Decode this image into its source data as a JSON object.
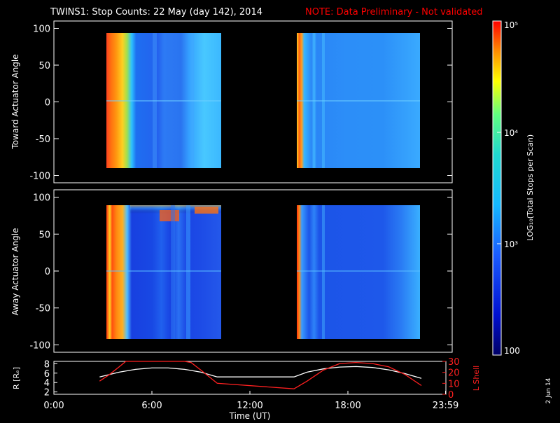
{
  "header": {
    "title": "TWINS1: Stop Counts: 22 May (day 142), 2014",
    "note": "NOTE: Data Preliminary - Not validated"
  },
  "footer_date": "2 Jun 14",
  "colors": {
    "background": "#000000",
    "note": "#ff0000",
    "foreground": "#ffffff",
    "l_shell": "#ff2020",
    "r_line": "#ffffff"
  },
  "chart_data": [
    {
      "type": "heatmap",
      "name": "toward-panel",
      "ylabel": "Toward Actuator Angle",
      "ylim": [
        -110,
        110
      ],
      "yticks": [
        100,
        50,
        0,
        -50,
        -100
      ],
      "xlim_hours": [
        0,
        24
      ],
      "intervals": [
        {
          "start_hours": 2.8,
          "end_hours": 10.0,
          "angle_range": [
            -88,
            90
          ]
        },
        {
          "start_hours": 14.7,
          "end_hours": 22.5,
          "angle_range": [
            -88,
            90
          ]
        }
      ]
    },
    {
      "type": "heatmap",
      "name": "away-panel",
      "ylabel": "Away Actuator Angle",
      "ylim": [
        -110,
        110
      ],
      "yticks": [
        100,
        50,
        0,
        -50,
        -100
      ],
      "xlim_hours": [
        0,
        24
      ],
      "intervals": [
        {
          "start_hours": 2.8,
          "end_hours": 10.0,
          "angle_range": [
            -88,
            90
          ]
        },
        {
          "start_hours": 14.7,
          "end_hours": 22.5,
          "angle_range": [
            -88,
            90
          ]
        }
      ]
    },
    {
      "type": "line",
      "name": "ephemeris-panel",
      "ylabel_left": "R [Rₑ]",
      "ylabel_right": "L Shell",
      "xlabel": "Time (UT)",
      "xtick_labels": [
        "0:00",
        "6:00",
        "12:00",
        "18:00",
        "23:59"
      ],
      "xtick_hours": [
        0,
        6,
        12,
        18,
        23.98
      ],
      "left_ylim": [
        1.5,
        8.5
      ],
      "left_yticks": [
        2,
        4,
        6,
        8
      ],
      "right_ylim": [
        0,
        30
      ],
      "right_yticks": [
        30,
        20,
        10,
        0
      ],
      "series": [
        {
          "axis": "left",
          "x_hours": [
            2.8,
            4,
            5,
            6,
            7,
            8,
            9,
            10,
            11,
            12,
            13,
            14,
            14.7,
            15.5,
            16.5,
            17.5,
            18.5,
            19.5,
            20.5,
            21.5,
            22.5
          ],
          "values": [
            5.2,
            6.2,
            6.8,
            7.1,
            7.1,
            6.8,
            6.2,
            5.2,
            5.2,
            5.2,
            5.2,
            5.2,
            5.2,
            6.2,
            6.9,
            7.3,
            7.4,
            7.2,
            6.7,
            5.9,
            4.9
          ]
        },
        {
          "axis": "right",
          "x_hours": [
            2.8,
            3.4,
            4.0,
            4.4,
            8.0,
            8.4,
            9.0,
            10.0,
            14.7,
            15.5,
            16.5,
            17.5,
            18.5,
            19.5,
            20.5,
            21.5,
            22.5
          ],
          "values": [
            12,
            18,
            25,
            31,
            31,
            29,
            22,
            10,
            5,
            12,
            22,
            28,
            29,
            28,
            25,
            18,
            8
          ]
        }
      ]
    },
    {
      "type": "heatmap",
      "name": "colorbar",
      "scale": "log",
      "range": [
        100,
        100000
      ],
      "tick_labels": [
        "100",
        "10³",
        "10⁴",
        "10⁵"
      ],
      "tick_values": [
        100,
        1000,
        10000,
        100000
      ],
      "label": "LOG₁₀(Total Stops per Scan)"
    }
  ]
}
